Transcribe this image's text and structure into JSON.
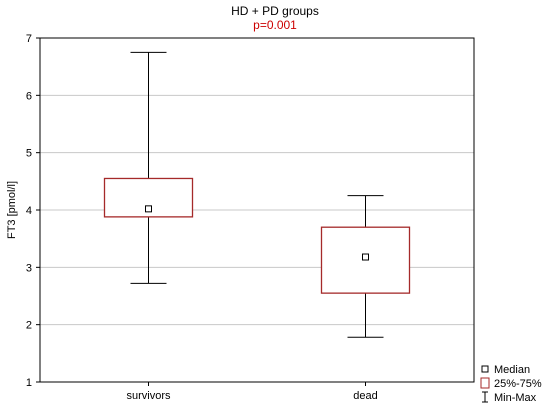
{
  "chart_data": {
    "type": "box",
    "title": "HD + PD groups",
    "subtitle": "p=0.001",
    "xlabel": "",
    "ylabel": "FT3 [pmol/l]",
    "ylim": [
      1,
      7
    ],
    "yticks": [
      1,
      2,
      3,
      4,
      5,
      6,
      7
    ],
    "grid": true,
    "legend_position": "bottom-right",
    "categories": [
      "survivors",
      "dead"
    ],
    "boxes": [
      {
        "category": "survivors",
        "min": 2.72,
        "q1": 3.88,
        "median": 4.02,
        "q3": 4.55,
        "max": 6.75
      },
      {
        "category": "dead",
        "min": 1.78,
        "q1": 2.55,
        "median": 3.18,
        "q3": 3.7,
        "max": 4.25
      }
    ],
    "legend": [
      {
        "label": "Median",
        "symbol": "square"
      },
      {
        "label": "25%-75%",
        "symbol": "box"
      },
      {
        "label": "Min-Max",
        "symbol": "whisker"
      }
    ],
    "colors": {
      "box": "#a52a2a",
      "subtitle": "#cc0000",
      "whisker": "#000000",
      "grid": "#c8c8c8"
    }
  }
}
